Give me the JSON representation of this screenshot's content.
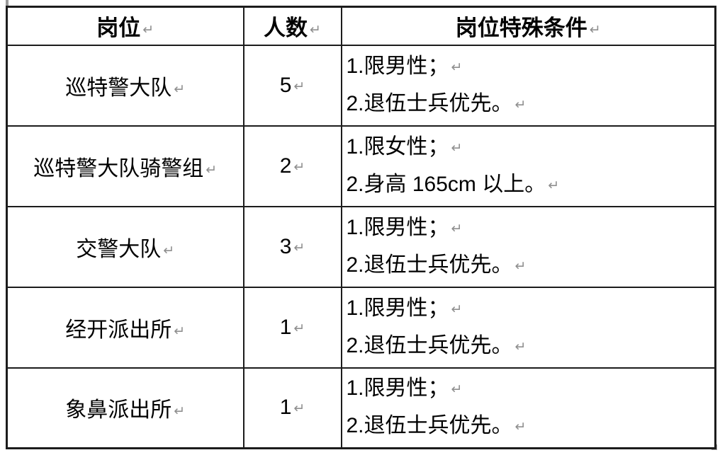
{
  "table": {
    "paragraph_mark": "↵",
    "headers": {
      "position": "岗位",
      "count": "人数",
      "conditions": "岗位特殊条件"
    },
    "rows": [
      {
        "position": "巡特警大队",
        "count": "5",
        "condition1": "1.限男性；",
        "condition2": "2.退伍士兵优先。"
      },
      {
        "position": "巡特警大队骑警组",
        "count": "2",
        "condition1": "1.限女性；",
        "condition2": "2.身高 165cm 以上。"
      },
      {
        "position": "交警大队",
        "count": "3",
        "condition1": "1.限男性；",
        "condition2": "2.退伍士兵优先。"
      },
      {
        "position": "经开派出所",
        "count": "1",
        "condition1": "1.限男性；",
        "condition2": "2.退伍士兵优先。"
      },
      {
        "position": "象鼻派出所",
        "count": "1",
        "condition1": "1.限男性；",
        "condition2": "2.退伍士兵优先。"
      }
    ],
    "colors": {
      "border": "#1c1c1c",
      "text": "#000000",
      "paragraph_mark": "#8f8f8f",
      "background": "#ffffff"
    }
  }
}
